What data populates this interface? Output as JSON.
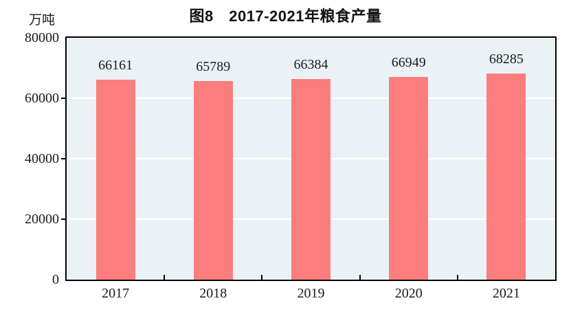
{
  "chart_data": {
    "type": "bar",
    "title": "图8　2017-2021年粮食产量",
    "ylabel": "万吨",
    "categories": [
      "2017",
      "2018",
      "2019",
      "2020",
      "2021"
    ],
    "values": [
      66161,
      65789,
      66384,
      66949,
      68285
    ],
    "value_labels": [
      "66161",
      "65789",
      "66384",
      "66949",
      "68285"
    ],
    "ylim": [
      0,
      80000
    ],
    "yticks": [
      0,
      20000,
      40000,
      60000,
      80000
    ],
    "grid": true,
    "legend_position": "none",
    "colors": {
      "bar": "#fb7d7d",
      "plot_background": "#ebf2f5",
      "gridline": "#ffffff",
      "axis": "#000000",
      "text": "#1a1a1a"
    }
  }
}
